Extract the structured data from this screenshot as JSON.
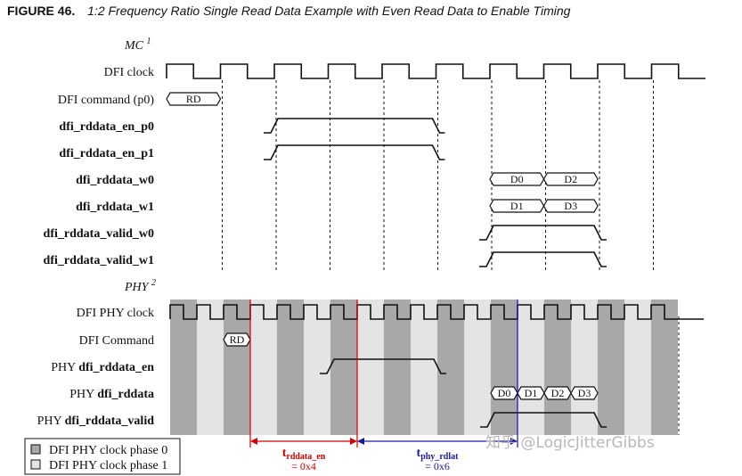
{
  "figure": {
    "number": "FIGURE 46.",
    "caption": "1:2 Frequency Ratio Single Read Data Example with Even Read Data to Enable Timing"
  },
  "mc": {
    "section_label": "MC",
    "section_note": "1",
    "signals": [
      {
        "label": "DFI clock",
        "bold": false,
        "kind": "clock"
      },
      {
        "label": "DFI command (p0)",
        "bold": false,
        "kind": "bus",
        "segments": [
          {
            "start": 0,
            "end": 1,
            "text": "RD"
          }
        ]
      },
      {
        "label": "dfi_rddata_en_p0",
        "bold": true,
        "kind": "level",
        "high": [
          2,
          5
        ]
      },
      {
        "label": "dfi_rddata_en_p1",
        "bold": true,
        "kind": "level",
        "high": [
          2,
          5
        ]
      },
      {
        "label": "dfi_rddata_w0",
        "bold": true,
        "kind": "bus",
        "segments": [
          {
            "start": 6,
            "end": 7,
            "text": "D0"
          },
          {
            "start": 7,
            "end": 8,
            "text": "D2"
          }
        ]
      },
      {
        "label": "dfi_rddata_w1",
        "bold": true,
        "kind": "bus",
        "segments": [
          {
            "start": 6,
            "end": 7,
            "text": "D1"
          },
          {
            "start": 7,
            "end": 8,
            "text": "D3"
          }
        ]
      },
      {
        "label": "dfi_rddata_valid_w0",
        "bold": true,
        "kind": "level",
        "high": [
          6,
          8
        ]
      },
      {
        "label": "dfi_rddata_valid_w1",
        "bold": true,
        "kind": "level",
        "high": [
          6,
          8
        ]
      }
    ]
  },
  "phy": {
    "section_label": "PHY",
    "section_note": "2",
    "signals": [
      {
        "label": "DFI PHY clock",
        "bold": false,
        "kind": "clock"
      },
      {
        "label": "DFI Command",
        "bold": false,
        "kind": "bus",
        "segments": [
          {
            "start": 2,
            "end": 3,
            "text": "RD"
          }
        ]
      },
      {
        "prefix": "PHY ",
        "label": "dfi_rddata_en",
        "bold": true,
        "kind": "level",
        "high": [
          6,
          10
        ]
      },
      {
        "prefix": "PHY ",
        "label": "dfi_rddata",
        "bold": true,
        "kind": "bus",
        "segments": [
          {
            "start": 12,
            "end": 13,
            "text": "D0"
          },
          {
            "start": 13,
            "end": 14,
            "text": "D1"
          },
          {
            "start": 14,
            "end": 15,
            "text": "D2"
          },
          {
            "start": 15,
            "end": 16,
            "text": "D3"
          }
        ]
      },
      {
        "prefix": "PHY ",
        "label": "dfi_rddata_valid",
        "bold": true,
        "kind": "level",
        "high": [
          12,
          16
        ]
      }
    ]
  },
  "measurements": [
    {
      "symbol": "t",
      "subscript": "rddata_en",
      "value": "= 0x4",
      "color": "#d40000"
    },
    {
      "symbol": "t",
      "subscript": "phy_rdlat",
      "value": "= 0x6",
      "color": "#1a1aa0"
    }
  ],
  "legend": {
    "items": [
      {
        "label": "DFI PHY clock phase 0",
        "fill": "#a8a8a8"
      },
      {
        "label": "DFI PHY clock phase 1",
        "fill": "#e4e4e4"
      }
    ]
  },
  "watermark": "知乎 @LogicJitterGibbs",
  "colors": {
    "red_marker": "#d40000",
    "blue_marker": "#1a1aa0",
    "phase0": "#a8a8a8",
    "phase1": "#e4e4e4"
  }
}
